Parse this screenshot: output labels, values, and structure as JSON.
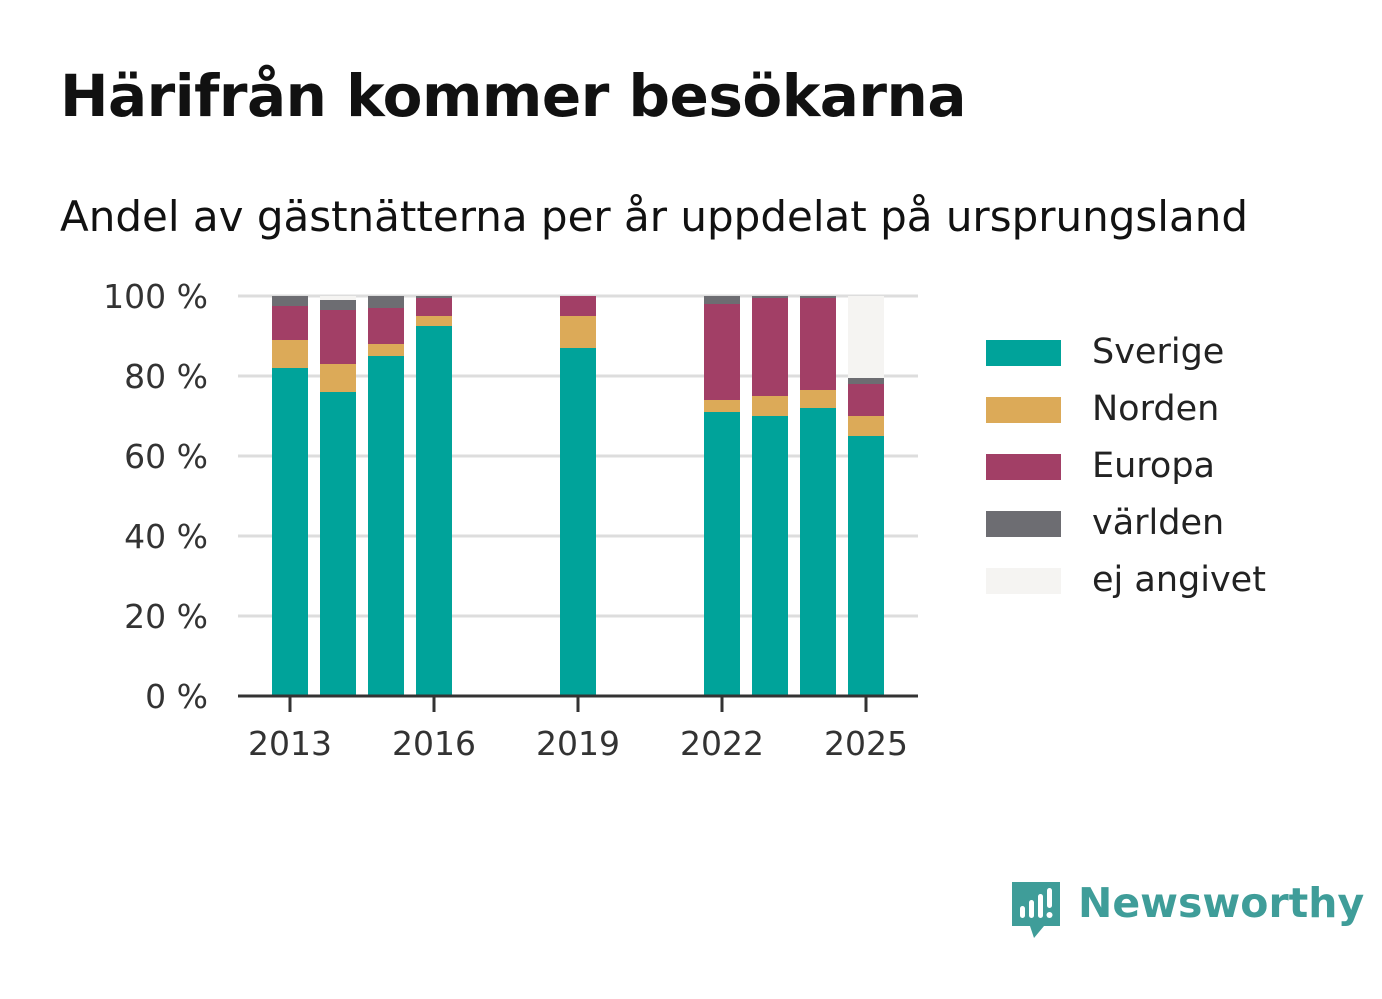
{
  "title": "Härifrån kommer besökarna",
  "subtitle": "Andel av gästnätterna per år uppdelat på ursprungsland",
  "brand": {
    "name": "Newsworthy",
    "icon": "newsworthy-logo-icon"
  },
  "colors": {
    "Sverige": "#00a39a",
    "Norden": "#dcaa58",
    "Europa": "#a23f66",
    "världen": "#6d6d72",
    "ej angivet": "#f5f4f2"
  },
  "chart_data": {
    "type": "bar",
    "stacked": true,
    "x": [
      2013,
      2014,
      2015,
      2016,
      2017,
      2018,
      2019,
      2020,
      2021,
      2022,
      2023,
      2024,
      2025
    ],
    "x_ticks": [
      "2013",
      "2016",
      "2019",
      "2022",
      "2025"
    ],
    "y_ticks": [
      "0 %",
      "20 %",
      "40 %",
      "60 %",
      "80 %",
      "100 %"
    ],
    "ylim": [
      0,
      100
    ],
    "grid": true,
    "legend_position": "right",
    "series": [
      {
        "name": "Sverige",
        "values": [
          82,
          76,
          85,
          92.5,
          null,
          null,
          87,
          null,
          null,
          71,
          70,
          72,
          65
        ]
      },
      {
        "name": "Norden",
        "values": [
          7,
          7,
          3,
          2.5,
          null,
          null,
          8,
          null,
          null,
          3,
          5,
          4.5,
          5
        ]
      },
      {
        "name": "Europa",
        "values": [
          8.5,
          13.5,
          9,
          4.5,
          null,
          null,
          5,
          null,
          null,
          24,
          24.5,
          23,
          8
        ]
      },
      {
        "name": "världen",
        "values": [
          2.5,
          2.5,
          3,
          0.5,
          null,
          null,
          0,
          null,
          null,
          2,
          0.5,
          0.5,
          1.5
        ]
      },
      {
        "name": "ej angivet",
        "values": [
          0,
          1,
          0,
          0,
          null,
          null,
          0,
          null,
          null,
          0,
          0,
          0,
          20.5
        ]
      }
    ]
  }
}
